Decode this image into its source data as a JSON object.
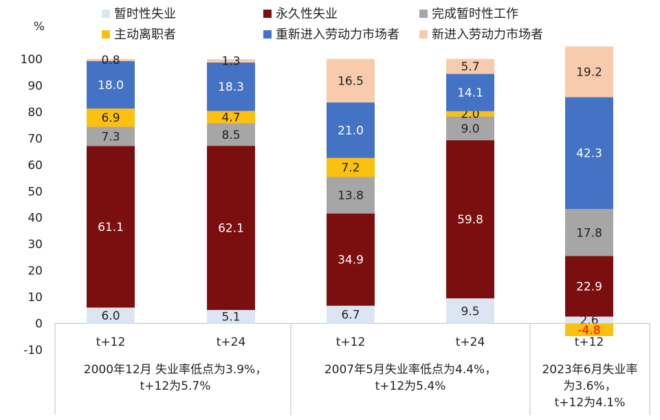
{
  "chart_data": {
    "type": "stacked-bar",
    "y_unit": "%",
    "ylim": [
      -10,
      100
    ],
    "y_ticks": [
      -10,
      0,
      10,
      20,
      30,
      40,
      50,
      60,
      70,
      80,
      90,
      100
    ],
    "grid": false,
    "legend_position": "top",
    "series": [
      {
        "name": "暂时性失业",
        "color": "#dce6f2",
        "label_color": "#222222",
        "values": [
          6.0,
          5.1,
          6.7,
          9.5,
          2.6
        ]
      },
      {
        "name": "永久性失业",
        "color": "#7b0f0f",
        "label_color": "#ffffff",
        "values": [
          61.1,
          62.1,
          34.9,
          59.8,
          22.9
        ]
      },
      {
        "name": "完成暂时性工作",
        "color": "#a6a6a6",
        "label_color": "#222222",
        "values": [
          7.3,
          8.5,
          13.8,
          9.0,
          17.8
        ]
      },
      {
        "name": "主动离职者",
        "color": "#fcc00e",
        "label_color": "#222222",
        "negative_label_color": "#ff0000",
        "values": [
          6.9,
          4.7,
          7.2,
          2.0,
          -4.8
        ]
      },
      {
        "name": "重新进入劳动力市场者",
        "color": "#4472c4",
        "label_color": "#ffffff",
        "values": [
          18.0,
          18.3,
          21.0,
          14.1,
          42.3
        ]
      },
      {
        "name": "新进入劳动力市场者",
        "color": "#f8cbad",
        "label_color": "#222222",
        "values": [
          0.8,
          1.3,
          16.5,
          5.7,
          19.2
        ]
      }
    ],
    "categories": [
      "t+12",
      "t+24",
      "t+12",
      "t+24",
      "t+12"
    ],
    "groups": [
      {
        "lines": [
          "2000年12月 失业率低点为3.9%，",
          "t+12为5.7%"
        ],
        "bars": [
          0,
          1
        ]
      },
      {
        "lines": [
          "2007年5月失业率低点为4.4%，",
          "t+12为5.4%"
        ],
        "bars": [
          2,
          3
        ]
      },
      {
        "lines": [
          "2023年6月失业率",
          "为3.6%，",
          "t+12为4.1%"
        ],
        "bars": [
          4
        ]
      }
    ]
  }
}
